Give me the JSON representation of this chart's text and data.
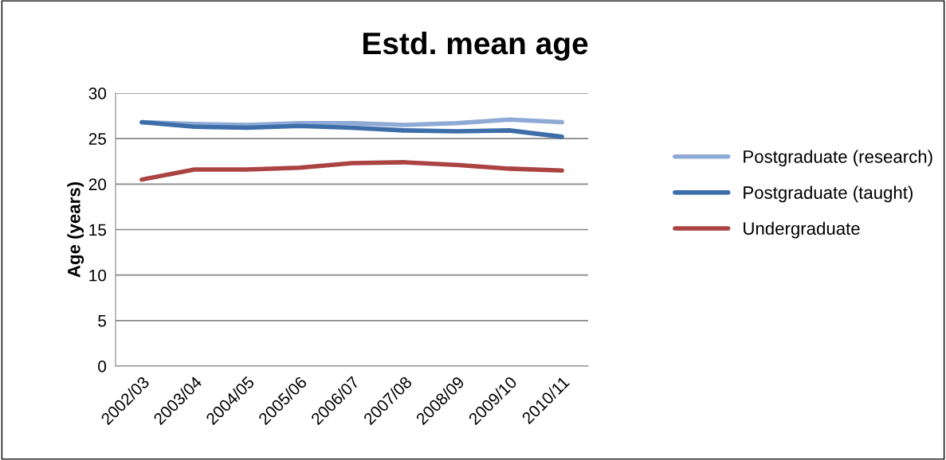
{
  "chart_data": {
    "type": "line",
    "title": "Estd. mean age",
    "ylabel": "Age (years)",
    "categories": [
      "2002/03",
      "2003/04",
      "2004/05",
      "2005/06",
      "2006/07",
      "2007/08",
      "2008/09",
      "2009/10",
      "2010/11"
    ],
    "series": [
      {
        "name": "Postgraduate (research)",
        "color": "#8eaad5",
        "values": [
          26.8,
          26.6,
          26.5,
          26.7,
          26.7,
          26.5,
          26.7,
          27.1,
          26.8
        ]
      },
      {
        "name": "Postgraduate (taught)",
        "color": "#3d6ea9",
        "values": [
          26.8,
          26.3,
          26.2,
          26.4,
          26.2,
          25.9,
          25.8,
          25.9,
          25.2
        ]
      },
      {
        "name": "Undergraduate",
        "color": "#aa4341",
        "values": [
          20.5,
          21.6,
          21.6,
          21.8,
          22.3,
          22.4,
          22.1,
          21.7,
          21.5
        ]
      }
    ],
    "ylim": [
      0,
      30
    ],
    "yticks": [
      0,
      5,
      10,
      15,
      20,
      25,
      30
    ],
    "grid": "y",
    "legend": "right",
    "marker": "none",
    "line_style": "solid"
  }
}
